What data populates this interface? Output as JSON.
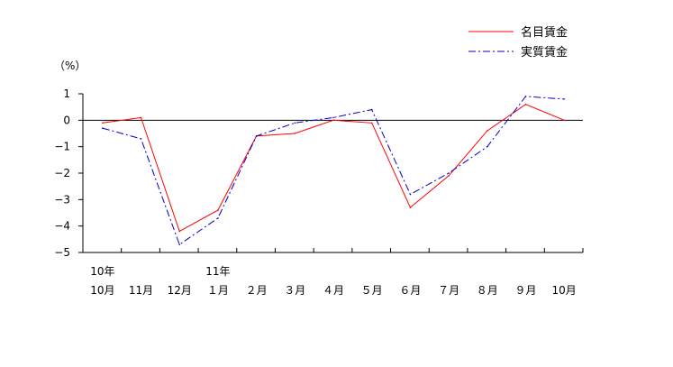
{
  "chart_data": {
    "type": "line",
    "title": "",
    "xlabel": "",
    "ylabel": "（%）",
    "ylim": [
      -5,
      1
    ],
    "yticks": [
      "1",
      "0",
      "−1",
      "−2",
      "−3",
      "−4",
      "−5"
    ],
    "ytick_values": [
      1,
      0,
      -1,
      -2,
      -3,
      -4,
      -5
    ],
    "categories": [
      "10月",
      "11月",
      "12月",
      "1月",
      "2月",
      "3月",
      "4月",
      "5月",
      "6月",
      "7月",
      "8月",
      "9月",
      "10月"
    ],
    "category_labels": [
      "10月",
      "11月",
      "12月",
      "１月",
      "２月",
      "３月",
      "４月",
      "５月",
      "６月",
      "７月",
      "８月",
      "９月",
      "10月"
    ],
    "year_labels": [
      {
        "index": 0,
        "text": "10年"
      },
      {
        "index": 3,
        "text": "11年"
      }
    ],
    "grid": false,
    "zero_line": true,
    "legend_position": "top-right",
    "series": [
      {
        "name": "名目賃金",
        "color": "#ff0000",
        "style": "solid",
        "values": [
          -0.1,
          0.1,
          -4.2,
          -3.4,
          -0.6,
          -0.5,
          0.0,
          -0.1,
          -3.3,
          -2.1,
          -0.4,
          0.6,
          0.0
        ]
      },
      {
        "name": "実質賃金",
        "color": "#0000cc",
        "style": "dash-dot",
        "values": [
          -0.3,
          -0.7,
          -4.7,
          -3.7,
          -0.6,
          -0.1,
          0.1,
          0.4,
          -2.8,
          -2.0,
          -1.0,
          0.9,
          0.8
        ]
      }
    ]
  }
}
